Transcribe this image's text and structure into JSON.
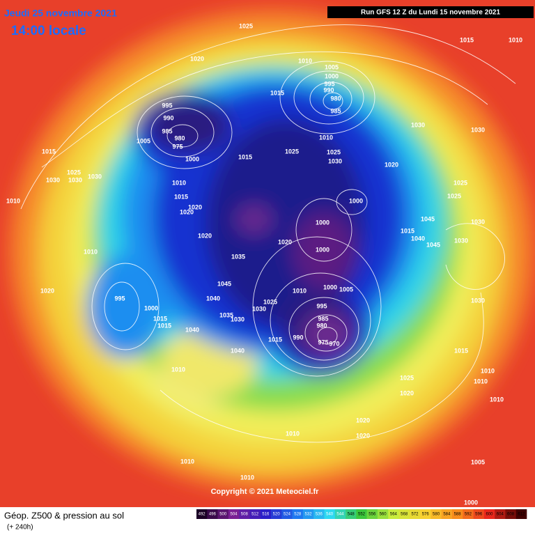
{
  "header": {
    "date": "Jeudi 25 novembre 2021",
    "time": "14:00 locale",
    "run": "Run GFS 12 Z du Lundi 15 novembre 2021"
  },
  "map": {
    "isobar_labels": [
      "1025",
      "1015",
      "1010",
      "1020",
      "1010",
      "1005",
      "1000",
      "995",
      "990",
      "980",
      "985",
      "1015",
      "995",
      "990",
      "985",
      "980",
      "975",
      "1005",
      "1000",
      "1015",
      "1025",
      "1010",
      "1025",
      "1030",
      "1030",
      "1030",
      "1020",
      "1015",
      "1025",
      "1030",
      "1030",
      "1030",
      "1010",
      "1010",
      "1015",
      "1020",
      "1020",
      "1020",
      "1000",
      "1000",
      "1000",
      "1020",
      "1035",
      "1025",
      "1025",
      "1030",
      "1045",
      "1015",
      "1040",
      "1045",
      "1030",
      "1010",
      "1045",
      "1040",
      "1010",
      "1000",
      "1005",
      "995",
      "985",
      "980",
      "990",
      "975",
      "970",
      "1015",
      "1025",
      "1030",
      "1035",
      "1030",
      "1040",
      "1040",
      "995",
      "1020",
      "1000",
      "1015",
      "1015",
      "1010",
      "1015",
      "1010",
      "1010",
      "1010",
      "1025",
      "1020",
      "1020",
      "1020",
      "1010",
      "1030",
      "1010",
      "1010",
      "1005",
      "1000"
    ],
    "copyright": "Copyright © 2021 Meteociel.fr"
  },
  "footer": {
    "title": "Géop. Z500 & pression au sol",
    "lead": "(+ 240h)"
  },
  "scale": {
    "ticks": [
      492,
      496,
      500,
      504,
      508,
      512,
      516,
      520,
      524,
      528,
      532,
      536,
      540,
      544,
      548,
      552,
      556,
      560,
      564,
      568,
      572,
      576,
      580,
      584,
      588,
      592,
      596,
      600,
      604,
      608,
      612
    ],
    "colors": [
      "#1a0026",
      "#7a1e94",
      "#2a1ec8",
      "#1e78f0",
      "#2ed8f0",
      "#3cc83c",
      "#c8ec3c",
      "#f8d030",
      "#f88c1c",
      "#e8281c",
      "#400000"
    ]
  }
}
